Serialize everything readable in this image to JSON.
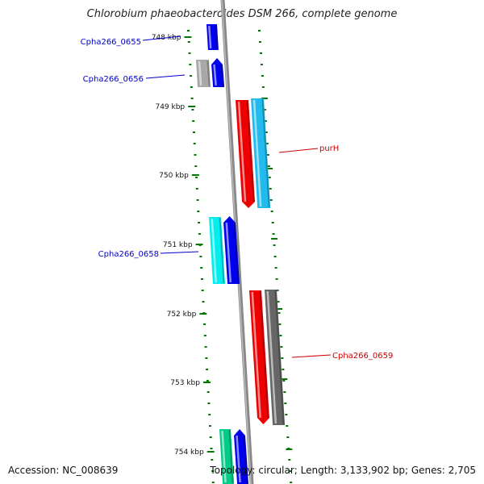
{
  "title": "Chlorobium phaeobacteroides DSM 266, complete genome",
  "footer": {
    "accession": "Accession: NC_008639",
    "topology": "Topology: circular; Length: 3,133,902 bp; Genes: 2,705"
  },
  "ticks": [
    "748 kbp",
    "749 kbp",
    "750 kbp",
    "751 kbp",
    "752 kbp",
    "753 kbp",
    "754 kbp"
  ],
  "colors": {
    "blue": "#0000ee",
    "grey": "#a8a8a8",
    "red": "#ee0000",
    "cyan_blue": "#22bbee",
    "cyan": "#00eeee",
    "dark_grey": "#666666",
    "green": "#00cc88",
    "label_blue": "#0000cc",
    "label_red": "#cc0000",
    "tick_green": "#007700",
    "backbone": "#888888"
  },
  "genes": [
    {
      "name": "Cpha266_0655",
      "labeled": true,
      "color_key": "blue",
      "strand": "forward"
    },
    {
      "name": "Cpha266_0656",
      "labeled": true,
      "color_key": "grey",
      "strand": "forward"
    },
    {
      "name": "Cpha266_0656 (partner)",
      "labeled": false,
      "color_key": "blue",
      "strand": "forward"
    },
    {
      "name": "purH",
      "labeled": true,
      "color_key": "red",
      "strand": "reverse"
    },
    {
      "name": "purH (partner)",
      "labeled": false,
      "color_key": "cyan_blue",
      "strand": "reverse"
    },
    {
      "name": "Cpha266_0658",
      "labeled": true,
      "color_key": "cyan",
      "strand": "forward"
    },
    {
      "name": "Cpha266_0658 (partner)",
      "labeled": false,
      "color_key": "blue",
      "strand": "forward"
    },
    {
      "name": "Cpha266_0659",
      "labeled": true,
      "color_key": "red",
      "strand": "reverse"
    },
    {
      "name": "Cpha266_0659 (partner)",
      "labeled": false,
      "color_key": "dark_grey",
      "strand": "reverse"
    },
    {
      "name": "unlabeled-1",
      "labeled": false,
      "color_key": "green",
      "strand": "forward"
    },
    {
      "name": "unlabeled-2",
      "labeled": false,
      "color_key": "blue",
      "strand": "forward"
    }
  ],
  "labels": [
    {
      "text": "Cpha266_0655",
      "color_key": "label_blue"
    },
    {
      "text": "Cpha266_0656",
      "color_key": "label_blue"
    },
    {
      "text": "purH",
      "color_key": "label_red"
    },
    {
      "text": "Cpha266_0658",
      "color_key": "label_blue"
    },
    {
      "text": "Cpha266_0659",
      "color_key": "label_red"
    }
  ]
}
